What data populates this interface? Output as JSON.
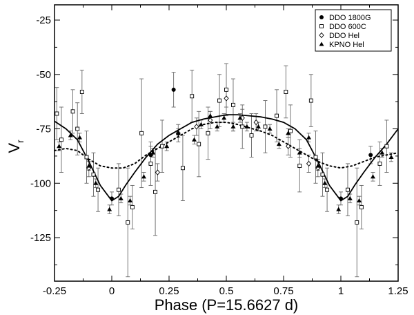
{
  "chart_data": {
    "type": "scatter",
    "title": "",
    "xlabel": "Phase (P=15.6627 d)",
    "ylabel": "V",
    "ylabel_sub": "r",
    "xlim": [
      -0.25,
      1.25
    ],
    "ylim": [
      -145,
      -18
    ],
    "x_ticks": [
      -0.25,
      0,
      0.25,
      0.5,
      0.75,
      1,
      1.25
    ],
    "x_tick_labels": [
      "-0.25",
      "0",
      "0.25",
      "0.5",
      "0.75",
      "1",
      "1.25"
    ],
    "y_ticks": [
      -125,
      -100,
      -75,
      -50,
      -25
    ],
    "y_tick_labels": [
      "-125",
      "-100",
      "-75",
      "-50",
      "-25"
    ],
    "grid": false,
    "legend_position": "top-right",
    "colors": {
      "ink": "#000000",
      "error_bar": "#666666",
      "background": "#ffffff"
    },
    "series": [
      {
        "name": "DDO 1800G",
        "marker": "filled-circle",
        "points": [
          {
            "x": 0.0,
            "y": -107,
            "err": 3
          },
          {
            "x": 0.17,
            "y": -87,
            "err": 4
          },
          {
            "x": 0.27,
            "y": -57,
            "err": 8
          },
          {
            "x": 1.0,
            "y": -107,
            "err": 3
          },
          {
            "x": 1.13,
            "y": -87,
            "err": 4
          }
        ]
      },
      {
        "name": "DDO 600C",
        "marker": "open-square",
        "points": [
          {
            "x": -0.24,
            "y": -68,
            "err": 12
          },
          {
            "x": -0.22,
            "y": -80,
            "err": 15
          },
          {
            "x": -0.17,
            "y": -67,
            "err": 10
          },
          {
            "x": -0.15,
            "y": -75,
            "err": 12
          },
          {
            "x": -0.13,
            "y": -58,
            "err": 10
          },
          {
            "x": -0.11,
            "y": -88,
            "err": 12
          },
          {
            "x": -0.08,
            "y": -96,
            "err": 10
          },
          {
            "x": -0.06,
            "y": -103,
            "err": 10
          },
          {
            "x": 0.03,
            "y": -103,
            "err": 12
          },
          {
            "x": 0.07,
            "y": -118,
            "err": 25
          },
          {
            "x": 0.09,
            "y": -111,
            "err": 10
          },
          {
            "x": 0.13,
            "y": -77,
            "err": 25
          },
          {
            "x": 0.17,
            "y": -91,
            "err": 10
          },
          {
            "x": 0.19,
            "y": -104,
            "err": 20
          },
          {
            "x": 0.22,
            "y": -83,
            "err": 12
          },
          {
            "x": 0.31,
            "y": -93,
            "err": 15
          },
          {
            "x": 0.35,
            "y": -60,
            "err": 12
          },
          {
            "x": 0.38,
            "y": -82,
            "err": 15
          },
          {
            "x": 0.42,
            "y": -77,
            "err": 12
          },
          {
            "x": 0.47,
            "y": -62,
            "err": 12
          },
          {
            "x": 0.5,
            "y": -57,
            "err": 12
          },
          {
            "x": 0.53,
            "y": -64,
            "err": 12
          },
          {
            "x": 0.57,
            "y": -74,
            "err": 10
          },
          {
            "x": 0.61,
            "y": -78,
            "err": 10
          },
          {
            "x": 0.67,
            "y": -74,
            "err": 12
          },
          {
            "x": 0.72,
            "y": -69,
            "err": 12
          },
          {
            "x": 0.76,
            "y": -58,
            "err": 12
          },
          {
            "x": 0.78,
            "y": -76,
            "err": 12
          },
          {
            "x": 0.82,
            "y": -92,
            "err": 12
          },
          {
            "x": 0.87,
            "y": -62,
            "err": 12
          },
          {
            "x": 0.89,
            "y": -88,
            "err": 12
          },
          {
            "x": 0.92,
            "y": -96,
            "err": 10
          },
          {
            "x": 0.94,
            "y": -103,
            "err": 10
          },
          {
            "x": 1.03,
            "y": -103,
            "err": 12
          },
          {
            "x": 1.07,
            "y": -118,
            "err": 25
          },
          {
            "x": 1.09,
            "y": -111,
            "err": 10
          },
          {
            "x": 1.17,
            "y": -91,
            "err": 10
          },
          {
            "x": 1.2,
            "y": -83,
            "err": 12
          }
        ]
      },
      {
        "name": "DDO Hel",
        "marker": "open-diamond",
        "points": [
          {
            "x": -0.1,
            "y": -93,
            "err": 4
          },
          {
            "x": 0.2,
            "y": -95,
            "err": 4
          },
          {
            "x": 0.29,
            "y": -77,
            "err": 4
          },
          {
            "x": 0.37,
            "y": -74,
            "err": 4
          },
          {
            "x": 0.43,
            "y": -71,
            "err": 4
          },
          {
            "x": 0.5,
            "y": -61,
            "err": 4
          },
          {
            "x": 0.57,
            "y": -70,
            "err": 4
          },
          {
            "x": 0.63,
            "y": -72,
            "err": 4
          },
          {
            "x": 0.77,
            "y": -83,
            "err": 4
          },
          {
            "x": 0.86,
            "y": -91,
            "err": 4
          },
          {
            "x": 0.9,
            "y": -93,
            "err": 4
          }
        ]
      },
      {
        "name": "KPNO Hel",
        "marker": "filled-triangle",
        "points": [
          {
            "x": -0.23,
            "y": -83,
            "err": 2
          },
          {
            "x": -0.18,
            "y": -78,
            "err": 2
          },
          {
            "x": -0.14,
            "y": -79,
            "err": 2
          },
          {
            "x": -0.1,
            "y": -92,
            "err": 2
          },
          {
            "x": -0.07,
            "y": -100,
            "err": 2
          },
          {
            "x": -0.01,
            "y": -112,
            "err": 2
          },
          {
            "x": 0.04,
            "y": -107,
            "err": 2
          },
          {
            "x": 0.08,
            "y": -108,
            "err": 2
          },
          {
            "x": 0.14,
            "y": -97,
            "err": 2
          },
          {
            "x": 0.18,
            "y": -86,
            "err": 2
          },
          {
            "x": 0.24,
            "y": -83,
            "err": 2
          },
          {
            "x": 0.29,
            "y": -77,
            "err": 2
          },
          {
            "x": 0.36,
            "y": -80,
            "err": 2
          },
          {
            "x": 0.39,
            "y": -73,
            "err": 2
          },
          {
            "x": 0.43,
            "y": -69,
            "err": 2
          },
          {
            "x": 0.46,
            "y": -74,
            "err": 2
          },
          {
            "x": 0.49,
            "y": -70,
            "err": 2
          },
          {
            "x": 0.53,
            "y": -74,
            "err": 2
          },
          {
            "x": 0.56,
            "y": -70,
            "err": 2
          },
          {
            "x": 0.59,
            "y": -74,
            "err": 2
          },
          {
            "x": 0.64,
            "y": -74,
            "err": 2
          },
          {
            "x": 0.69,
            "y": -75,
            "err": 2
          },
          {
            "x": 0.73,
            "y": -82,
            "err": 2
          },
          {
            "x": 0.77,
            "y": -77,
            "err": 2
          },
          {
            "x": 0.82,
            "y": -86,
            "err": 2
          },
          {
            "x": 0.86,
            "y": -79,
            "err": 2
          },
          {
            "x": 0.9,
            "y": -92,
            "err": 2
          },
          {
            "x": 0.93,
            "y": -100,
            "err": 2
          },
          {
            "x": 0.99,
            "y": -112,
            "err": 2
          },
          {
            "x": 1.04,
            "y": -107,
            "err": 2
          },
          {
            "x": 1.08,
            "y": -108,
            "err": 2
          },
          {
            "x": 1.14,
            "y": -97,
            "err": 2
          },
          {
            "x": 1.18,
            "y": -86,
            "err": 2
          },
          {
            "x": 1.22,
            "y": -88,
            "err": 2
          }
        ]
      }
    ],
    "curves": [
      {
        "style": "solid",
        "points": [
          [
            -0.25,
            -71.5
          ],
          [
            -0.2,
            -75
          ],
          [
            -0.15,
            -80
          ],
          [
            -0.1,
            -90
          ],
          [
            -0.05,
            -101
          ],
          [
            0.0,
            -108
          ],
          [
            0.03,
            -106
          ],
          [
            0.06,
            -101
          ],
          [
            0.1,
            -95
          ],
          [
            0.15,
            -88
          ],
          [
            0.2,
            -82
          ],
          [
            0.25,
            -78
          ],
          [
            0.3,
            -75
          ],
          [
            0.35,
            -72
          ],
          [
            0.4,
            -70.5
          ],
          [
            0.45,
            -69.5
          ],
          [
            0.5,
            -68.5
          ],
          [
            0.55,
            -68.5
          ],
          [
            0.6,
            -69
          ],
          [
            0.65,
            -69.5
          ],
          [
            0.7,
            -70.5
          ],
          [
            0.75,
            -72
          ],
          [
            0.8,
            -75
          ],
          [
            0.85,
            -80
          ],
          [
            0.9,
            -90
          ],
          [
            0.95,
            -101
          ],
          [
            1.0,
            -108
          ],
          [
            1.03,
            -106
          ],
          [
            1.06,
            -101
          ],
          [
            1.1,
            -95
          ],
          [
            1.15,
            -88
          ],
          [
            1.2,
            -82
          ],
          [
            1.25,
            -75
          ]
        ]
      },
      {
        "style": "dotted",
        "points": [
          [
            -0.25,
            -85
          ],
          [
            -0.2,
            -84
          ],
          [
            -0.15,
            -85
          ],
          [
            -0.1,
            -89
          ],
          [
            -0.05,
            -92
          ],
          [
            0.0,
            -93
          ],
          [
            0.05,
            -93
          ],
          [
            0.1,
            -91
          ],
          [
            0.15,
            -87
          ],
          [
            0.2,
            -84
          ],
          [
            0.25,
            -81
          ],
          [
            0.3,
            -78
          ],
          [
            0.35,
            -75
          ],
          [
            0.4,
            -73
          ],
          [
            0.45,
            -72
          ],
          [
            0.5,
            -72
          ],
          [
            0.55,
            -73
          ],
          [
            0.6,
            -74.5
          ],
          [
            0.65,
            -76
          ],
          [
            0.7,
            -78
          ],
          [
            0.75,
            -81
          ],
          [
            0.8,
            -84
          ],
          [
            0.85,
            -87
          ],
          [
            0.9,
            -90
          ],
          [
            0.95,
            -92
          ],
          [
            1.0,
            -93
          ],
          [
            1.05,
            -92
          ],
          [
            1.1,
            -90
          ],
          [
            1.15,
            -88
          ],
          [
            1.2,
            -87
          ],
          [
            1.25,
            -86
          ]
        ]
      }
    ]
  }
}
